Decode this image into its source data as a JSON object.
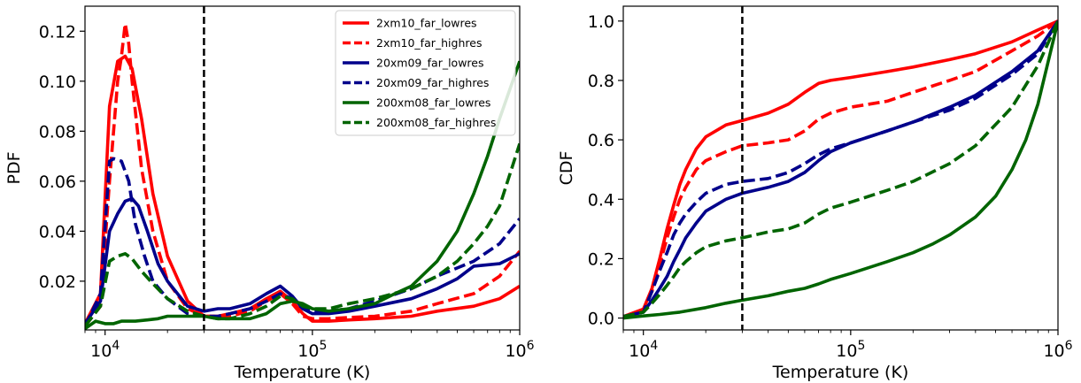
{
  "colors": {
    "red": "#ff0000",
    "navy": "#00008b",
    "green": "#006400",
    "marker": "#000000"
  },
  "chart_data": [
    {
      "type": "line",
      "xlabel": "Temperature (K)",
      "ylabel": "PDF",
      "x_scale": "log",
      "xlim": [
        8000,
        1000000
      ],
      "ylim": [
        0.0005,
        0.13
      ],
      "xticks": [
        {
          "value": 10000,
          "label": "10^4"
        },
        {
          "value": 100000,
          "label": "10^5"
        },
        {
          "value": 1000000,
          "label": "10^6"
        }
      ],
      "yticks": [
        {
          "value": 0.02,
          "label": "0.02"
        },
        {
          "value": 0.04,
          "label": "0.04"
        },
        {
          "value": 0.06,
          "label": "0.06"
        },
        {
          "value": 0.08,
          "label": "0.08"
        },
        {
          "value": 0.1,
          "label": "0.10"
        },
        {
          "value": 0.12,
          "label": "0.12"
        }
      ],
      "vline_x": 30000,
      "legend_position": "top-right",
      "series": [
        {
          "name": "2xm10_far_lowres",
          "color": "red",
          "dash": "solid",
          "x": [
            8000,
            9500,
            10500,
            11500,
            12500,
            13500,
            15000,
            17000,
            20000,
            25000,
            30000,
            35000,
            40000,
            50000,
            60000,
            70000,
            80000,
            90000,
            100000,
            120000,
            150000,
            200000,
            300000,
            400000,
            600000,
            800000,
            1000000
          ],
          "y": [
            0.003,
            0.015,
            0.09,
            0.108,
            0.11,
            0.105,
            0.085,
            0.055,
            0.03,
            0.012,
            0.006,
            0.006,
            0.007,
            0.009,
            0.013,
            0.016,
            0.012,
            0.007,
            0.004,
            0.004,
            0.0045,
            0.005,
            0.006,
            0.008,
            0.01,
            0.013,
            0.018
          ]
        },
        {
          "name": "2xm10_far_highres",
          "color": "red",
          "dash": "dashed",
          "x": [
            8000,
            9500,
            10500,
            11500,
            12000,
            12500,
            13000,
            13500,
            15000,
            17000,
            20000,
            25000,
            30000,
            35000,
            40000,
            50000,
            60000,
            70000,
            80000,
            90000,
            100000,
            120000,
            150000,
            200000,
            300000,
            400000,
            600000,
            800000,
            1000000
          ],
          "y": [
            0.002,
            0.01,
            0.06,
            0.1,
            0.11,
            0.123,
            0.115,
            0.1,
            0.065,
            0.04,
            0.02,
            0.009,
            0.006,
            0.006,
            0.006,
            0.008,
            0.012,
            0.015,
            0.011,
            0.006,
            0.005,
            0.005,
            0.0055,
            0.006,
            0.008,
            0.011,
            0.015,
            0.022,
            0.032
          ]
        },
        {
          "name": "20xm09_far_lowres",
          "color": "navy",
          "dash": "solid",
          "x": [
            8000,
            9500,
            10500,
            11500,
            12500,
            13500,
            14500,
            16000,
            18000,
            20000,
            25000,
            30000,
            35000,
            40000,
            50000,
            60000,
            70000,
            80000,
            90000,
            100000,
            120000,
            150000,
            200000,
            300000,
            400000,
            500000,
            600000,
            800000,
            1000000
          ],
          "y": [
            0.003,
            0.012,
            0.04,
            0.047,
            0.052,
            0.053,
            0.05,
            0.04,
            0.027,
            0.02,
            0.01,
            0.008,
            0.009,
            0.009,
            0.011,
            0.015,
            0.018,
            0.014,
            0.009,
            0.007,
            0.007,
            0.008,
            0.01,
            0.013,
            0.017,
            0.021,
            0.026,
            0.027,
            0.031
          ]
        },
        {
          "name": "20xm09_far_highres",
          "color": "navy",
          "dash": "dashed",
          "x": [
            8000,
            9500,
            10500,
            11000,
            12000,
            13000,
            14000,
            15500,
            17000,
            20000,
            25000,
            30000,
            35000,
            40000,
            50000,
            60000,
            70000,
            80000,
            90000,
            100000,
            120000,
            150000,
            200000,
            300000,
            400000,
            600000,
            800000,
            1000000
          ],
          "y": [
            0.002,
            0.015,
            0.068,
            0.069,
            0.068,
            0.06,
            0.043,
            0.03,
            0.02,
            0.013,
            0.007,
            0.006,
            0.006,
            0.007,
            0.009,
            0.012,
            0.015,
            0.013,
            0.009,
            0.008,
            0.008,
            0.009,
            0.012,
            0.017,
            0.022,
            0.028,
            0.035,
            0.045
          ]
        },
        {
          "name": "200xm08_far_lowres",
          "color": "green",
          "dash": "solid",
          "x": [
            8000,
            9000,
            10000,
            11000,
            12000,
            14000,
            16000,
            18000,
            20000,
            25000,
            30000,
            35000,
            40000,
            50000,
            60000,
            70000,
            80000,
            90000,
            100000,
            120000,
            150000,
            200000,
            250000,
            300000,
            400000,
            500000,
            600000,
            700000,
            800000,
            1000000
          ],
          "y": [
            0.001,
            0.004,
            0.003,
            0.003,
            0.004,
            0.004,
            0.0045,
            0.005,
            0.006,
            0.006,
            0.006,
            0.005,
            0.005,
            0.005,
            0.007,
            0.011,
            0.012,
            0.011,
            0.009,
            0.008,
            0.009,
            0.011,
            0.015,
            0.018,
            0.028,
            0.04,
            0.055,
            0.07,
            0.085,
            0.108
          ]
        },
        {
          "name": "200xm08_far_highres",
          "color": "green",
          "dash": "dashed",
          "x": [
            8000,
            9500,
            10500,
            11500,
            12500,
            13500,
            15000,
            17000,
            20000,
            25000,
            30000,
            35000,
            40000,
            50000,
            60000,
            70000,
            80000,
            90000,
            100000,
            120000,
            150000,
            200000,
            300000,
            400000,
            500000,
            600000,
            700000,
            800000,
            1000000
          ],
          "y": [
            0.002,
            0.01,
            0.028,
            0.03,
            0.031,
            0.029,
            0.024,
            0.019,
            0.013,
            0.008,
            0.006,
            0.005,
            0.005,
            0.007,
            0.01,
            0.014,
            0.013,
            0.01,
            0.009,
            0.009,
            0.011,
            0.013,
            0.017,
            0.022,
            0.028,
            0.035,
            0.042,
            0.05,
            0.075
          ]
        }
      ]
    },
    {
      "type": "line",
      "xlabel": "Temperature (K)",
      "ylabel": "CDF",
      "x_scale": "log",
      "xlim": [
        8000,
        1000000
      ],
      "ylim": [
        -0.04,
        1.05
      ],
      "xticks": [
        {
          "value": 10000,
          "label": "10^4"
        },
        {
          "value": 100000,
          "label": "10^5"
        },
        {
          "value": 1000000,
          "label": "10^6"
        }
      ],
      "yticks": [
        {
          "value": 0.0,
          "label": "0.0"
        },
        {
          "value": 0.2,
          "label": "0.2"
        },
        {
          "value": 0.4,
          "label": "0.4"
        },
        {
          "value": 0.6,
          "label": "0.6"
        },
        {
          "value": 0.8,
          "label": "0.8"
        },
        {
          "value": 1.0,
          "label": "1.0"
        }
      ],
      "vline_x": 30000,
      "series": [
        {
          "name": "2xm10_far_lowres",
          "color": "red",
          "dash": "solid",
          "x": [
            8000,
            10000,
            11000,
            12000,
            13000,
            14000,
            15000,
            16000,
            18000,
            20000,
            25000,
            30000,
            40000,
            50000,
            60000,
            70000,
            80000,
            100000,
            150000,
            200000,
            300000,
            400000,
            600000,
            800000,
            1000000
          ],
          "y": [
            0.005,
            0.03,
            0.1,
            0.2,
            0.3,
            0.38,
            0.45,
            0.5,
            0.57,
            0.61,
            0.65,
            0.665,
            0.69,
            0.72,
            0.76,
            0.79,
            0.8,
            0.81,
            0.83,
            0.845,
            0.87,
            0.89,
            0.93,
            0.97,
            1.0
          ]
        },
        {
          "name": "2xm10_far_highres",
          "color": "red",
          "dash": "dashed",
          "x": [
            8000,
            10000,
            11000,
            12000,
            13000,
            14000,
            15000,
            16000,
            18000,
            20000,
            25000,
            30000,
            40000,
            50000,
            60000,
            70000,
            80000,
            100000,
            150000,
            200000,
            300000,
            400000,
            600000,
            800000,
            1000000
          ],
          "y": [
            0.005,
            0.025,
            0.09,
            0.18,
            0.27,
            0.34,
            0.4,
            0.44,
            0.5,
            0.53,
            0.56,
            0.58,
            0.59,
            0.6,
            0.63,
            0.67,
            0.69,
            0.71,
            0.73,
            0.76,
            0.8,
            0.83,
            0.9,
            0.95,
            1.0
          ]
        },
        {
          "name": "20xm09_far_lowres",
          "color": "navy",
          "dash": "solid",
          "x": [
            8000,
            10000,
            11000,
            12000,
            13000,
            14000,
            15000,
            16000,
            18000,
            20000,
            25000,
            30000,
            40000,
            50000,
            60000,
            70000,
            80000,
            100000,
            150000,
            200000,
            300000,
            400000,
            600000,
            800000,
            1000000
          ],
          "y": [
            0.005,
            0.02,
            0.06,
            0.1,
            0.14,
            0.19,
            0.23,
            0.27,
            0.32,
            0.36,
            0.4,
            0.42,
            0.44,
            0.46,
            0.49,
            0.53,
            0.56,
            0.59,
            0.63,
            0.66,
            0.71,
            0.75,
            0.83,
            0.9,
            1.0
          ]
        },
        {
          "name": "20xm09_far_highres",
          "color": "navy",
          "dash": "dashed",
          "x": [
            8000,
            10000,
            11000,
            12000,
            13000,
            14000,
            15000,
            16000,
            18000,
            20000,
            25000,
            30000,
            40000,
            50000,
            60000,
            70000,
            80000,
            100000,
            150000,
            200000,
            300000,
            400000,
            600000,
            800000,
            1000000
          ],
          "y": [
            0.005,
            0.02,
            0.09,
            0.16,
            0.22,
            0.28,
            0.32,
            0.35,
            0.39,
            0.42,
            0.45,
            0.46,
            0.47,
            0.49,
            0.52,
            0.55,
            0.57,
            0.59,
            0.63,
            0.66,
            0.7,
            0.74,
            0.82,
            0.89,
            1.0
          ]
        },
        {
          "name": "200xm08_far_lowres",
          "color": "green",
          "dash": "solid",
          "x": [
            8000,
            10000,
            12000,
            15000,
            20000,
            25000,
            30000,
            40000,
            50000,
            60000,
            70000,
            80000,
            100000,
            150000,
            200000,
            250000,
            300000,
            400000,
            500000,
            600000,
            700000,
            800000,
            1000000
          ],
          "y": [
            0.0,
            0.007,
            0.012,
            0.02,
            0.035,
            0.05,
            0.06,
            0.075,
            0.09,
            0.1,
            0.115,
            0.13,
            0.15,
            0.19,
            0.22,
            0.25,
            0.28,
            0.34,
            0.41,
            0.5,
            0.6,
            0.72,
            1.0
          ]
        },
        {
          "name": "200xm08_far_highres",
          "color": "green",
          "dash": "dashed",
          "x": [
            8000,
            10000,
            11000,
            12000,
            13000,
            14000,
            15000,
            16000,
            18000,
            20000,
            25000,
            30000,
            40000,
            50000,
            60000,
            70000,
            80000,
            100000,
            150000,
            200000,
            300000,
            400000,
            600000,
            800000,
            1000000
          ],
          "y": [
            0.005,
            0.02,
            0.05,
            0.08,
            0.11,
            0.14,
            0.17,
            0.19,
            0.22,
            0.24,
            0.26,
            0.27,
            0.29,
            0.3,
            0.32,
            0.35,
            0.37,
            0.39,
            0.43,
            0.46,
            0.52,
            0.58,
            0.71,
            0.85,
            1.0
          ]
        }
      ]
    }
  ]
}
